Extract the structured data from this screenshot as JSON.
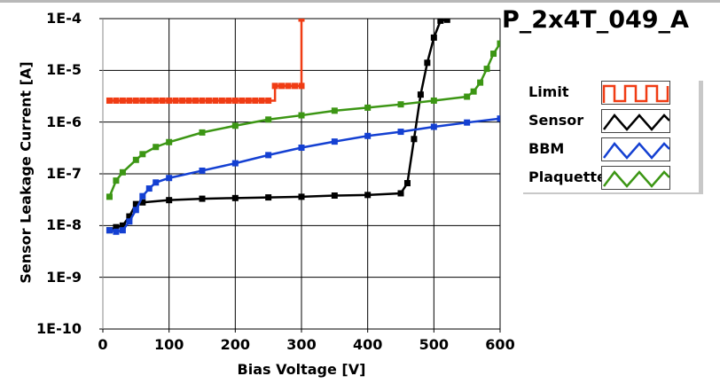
{
  "chart_data": {
    "type": "line",
    "title": "P_2x4T_049_A",
    "xlabel": "Bias Voltage [V]",
    "ylabel": "Sensor Leakage Current [A]",
    "xlim": [
      0,
      600
    ],
    "ylim": [
      1e-10,
      0.0001
    ],
    "yscale": "log",
    "grid": true,
    "legend_position": "right",
    "x_ticks": [
      "0",
      "100",
      "200",
      "300",
      "400",
      "500",
      "600"
    ],
    "y_ticks": [
      "1E-4",
      "1E-5",
      "1E-6",
      "1E-7",
      "1E-8",
      "1E-9",
      "1E-10"
    ],
    "series": [
      {
        "name": "Limit",
        "color": "#f03c14",
        "step": true,
        "x": [
          10,
          20,
          30,
          40,
          50,
          60,
          70,
          80,
          90,
          100,
          110,
          120,
          130,
          140,
          150,
          160,
          170,
          180,
          190,
          200,
          210,
          220,
          230,
          240,
          250,
          260,
          270,
          280,
          290,
          300,
          300
        ],
        "y": [
          2.6e-06,
          2.6e-06,
          2.6e-06,
          2.6e-06,
          2.6e-06,
          2.6e-06,
          2.6e-06,
          2.6e-06,
          2.6e-06,
          2.6e-06,
          2.6e-06,
          2.6e-06,
          2.6e-06,
          2.6e-06,
          2.6e-06,
          2.6e-06,
          2.6e-06,
          2.6e-06,
          2.6e-06,
          2.6e-06,
          2.6e-06,
          2.6e-06,
          2.6e-06,
          2.6e-06,
          2.6e-06,
          5e-06,
          5e-06,
          5e-06,
          5e-06,
          5e-06,
          0.0001
        ]
      },
      {
        "name": "Sensor",
        "color": "#000000",
        "x": [
          10,
          20,
          30,
          40,
          50,
          60,
          100,
          150,
          200,
          250,
          300,
          350,
          400,
          450,
          460,
          470,
          480,
          490,
          500,
          510,
          520
        ],
        "y": [
          8.1e-09,
          9.3e-09,
          1e-08,
          1.5e-08,
          2.6e-08,
          2.8e-08,
          3.1e-08,
          3.3e-08,
          3.4e-08,
          3.5e-08,
          3.6e-08,
          3.8e-08,
          3.9e-08,
          4.2e-08,
          6.6e-08,
          4.7e-07,
          3.4e-06,
          1.4e-05,
          4.3e-05,
          9.1e-05,
          9.5e-05
        ]
      },
      {
        "name": "BBM",
        "color": "#1440d2",
        "x": [
          10,
          20,
          30,
          40,
          50,
          60,
          70,
          80,
          100,
          150,
          200,
          250,
          300,
          350,
          400,
          450,
          500,
          550,
          600
        ],
        "y": [
          8.1e-09,
          7.6e-09,
          8.1e-09,
          1.2e-08,
          2e-08,
          3.7e-08,
          5.2e-08,
          6.8e-08,
          8.3e-08,
          1.15e-07,
          1.6e-07,
          2.3e-07,
          3.2e-07,
          4.2e-07,
          5.4e-07,
          6.5e-07,
          8.1e-07,
          9.8e-07,
          1.17e-06
        ]
      },
      {
        "name": "Plaquette",
        "color": "#3c9614",
        "x": [
          10,
          20,
          30,
          50,
          60,
          80,
          100,
          150,
          200,
          250,
          300,
          350,
          400,
          450,
          500,
          550,
          560,
          570,
          580,
          590,
          600
        ],
        "y": [
          3.6e-08,
          7.4e-08,
          1.07e-07,
          1.86e-07,
          2.4e-07,
          3.3e-07,
          4.1e-07,
          6.3e-07,
          8.5e-07,
          1.12e-06,
          1.35e-06,
          1.66e-06,
          1.9e-06,
          2.2e-06,
          2.6e-06,
          3.1e-06,
          3.9e-06,
          5.8e-06,
          1.07e-05,
          2.1e-05,
          3.3e-05
        ]
      }
    ]
  }
}
